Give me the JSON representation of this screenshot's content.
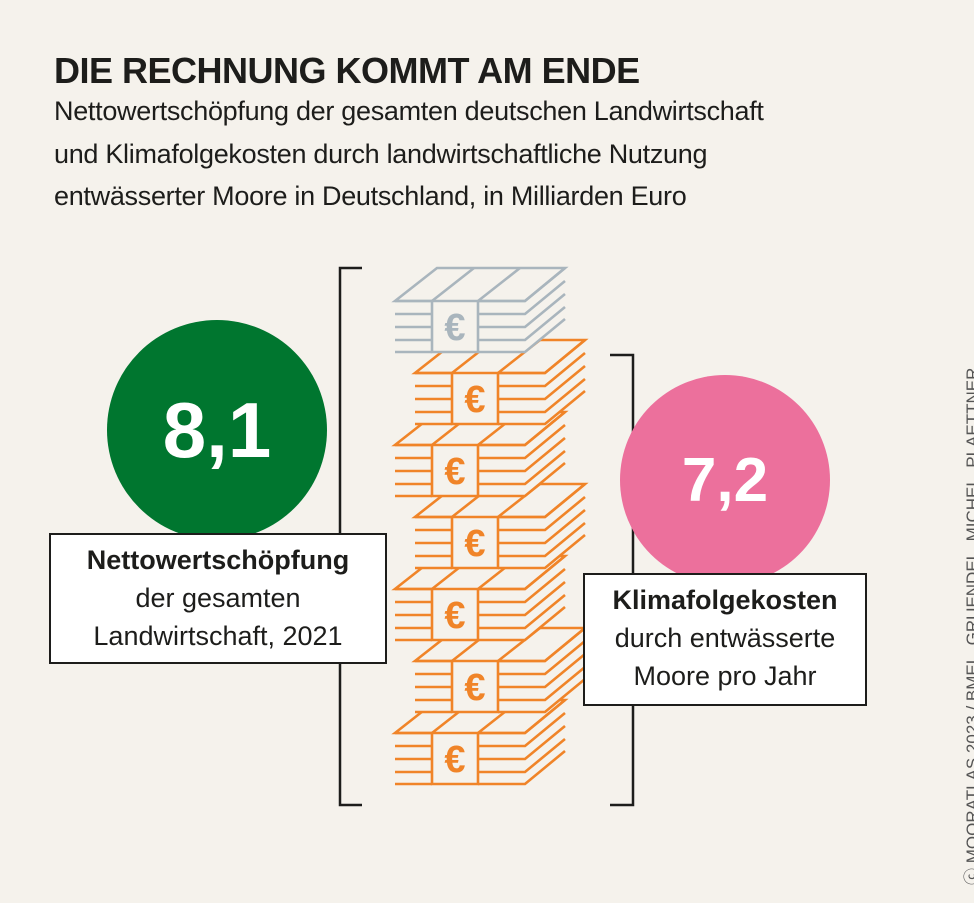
{
  "title": "DIE RECHNUNG KOMMT AM ENDE",
  "subtitle_lines": [
    "Nettowertschöpfung der gesamten deutschen Landwirtschaft",
    "und Klimafolgekosten durch landwirtschaftliche Nutzung",
    "entwässerter Moore in Deutschland, in Milliarden Euro"
  ],
  "left": {
    "value": "8,1",
    "label_bold": "Nettowertschöpfung",
    "label_lines": [
      "der gesamten",
      "Landwirtschaft, 2021"
    ],
    "color": "#00762f"
  },
  "right": {
    "value": "7,2",
    "label_bold": "Klimafolgekosten",
    "label_lines": [
      "durch entwässerte",
      "Moore pro Jahr"
    ],
    "color": "#ec709c"
  },
  "credit": "MOORATLAS 2023 / BMEL, GRUENDEL, MICHEL, PLAETTNER",
  "colors": {
    "orange": "#f08428",
    "gray": "#a9b5bd",
    "bg": "#f5f2ec"
  },
  "chart_data": {
    "type": "bar",
    "title": "DIE RECHNUNG KOMMT AM ENDE",
    "categories": [
      "Nettowertschöpfung der gesamten Landwirtschaft, 2021",
      "Klimafolgekosten durch entwässerte Moore pro Jahr"
    ],
    "values": [
      8.1,
      7.2
    ],
    "unit": "Milliarden Euro",
    "stacks": {
      "total": 7,
      "orange_cost_stacks": 6,
      "gray_remaining_stacks": 1
    }
  }
}
